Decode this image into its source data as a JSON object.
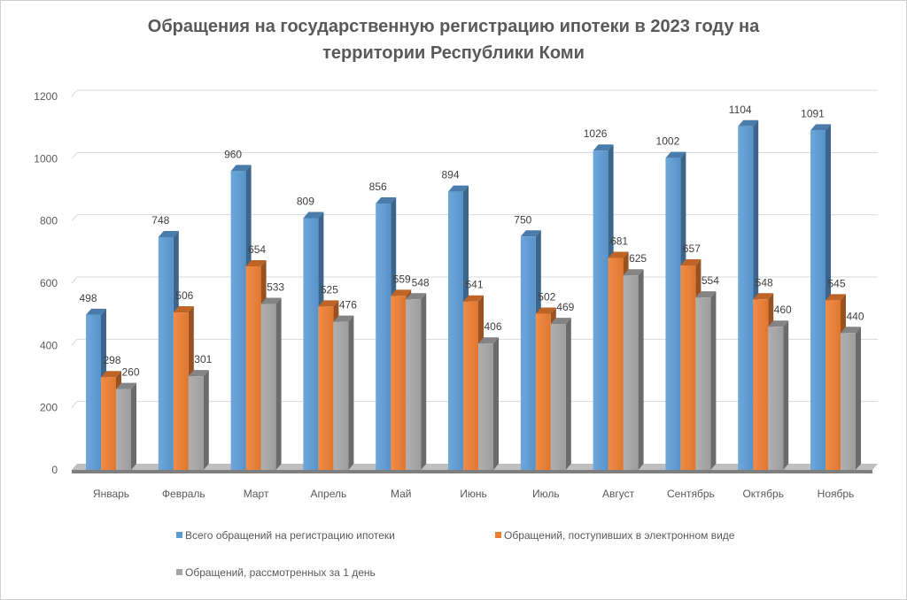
{
  "chart_data": {
    "type": "bar",
    "title_lines": [
      "Обращения на государственную регистрацию ипотеки в 2023 году на",
      "территории Республики Коми"
    ],
    "categories": [
      "Январь",
      "Февраль",
      "Март",
      "Апрель",
      "Май",
      "Июнь",
      "Июль",
      "Август",
      "Сентябрь",
      "Октябрь",
      "Ноябрь"
    ],
    "series": [
      {
        "name": "Всего обращений на регистрацию ипотеки",
        "values": [
          498,
          748,
          960,
          809,
          856,
          894,
          750,
          1026,
          1002,
          1104,
          1091
        ],
        "color": "#5b9bd5"
      },
      {
        "name": "Обращений, поступивших в электронном виде",
        "values": [
          298,
          506,
          654,
          525,
          559,
          541,
          502,
          681,
          657,
          548,
          545
        ],
        "color": "#ed7d31"
      },
      {
        "name": "Обращений, рассмотренных за 1 день",
        "values": [
          260,
          301,
          533,
          476,
          548,
          406,
          469,
          625,
          554,
          460,
          440
        ],
        "color": "#a5a5a5"
      }
    ],
    "y_ticks": [
      "0",
      "200",
      "400",
      "600",
      "800",
      "1000",
      "1200"
    ],
    "ylim": [
      0,
      1200
    ],
    "grid": true,
    "style": "3d-column",
    "legend_position": "bottom"
  }
}
